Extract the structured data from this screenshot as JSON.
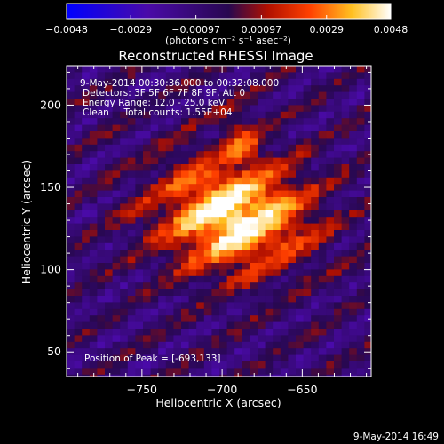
{
  "colorbar": {
    "ticks": [
      "-0.0048",
      "-0.0029",
      "-0.00097",
      "0.00097",
      "0.0029",
      "0.0048"
    ],
    "units": "(photons cm⁻² s⁻¹ asec⁻²)",
    "range": [
      -0.0048,
      0.0048
    ]
  },
  "chart_data": {
    "type": "heatmap",
    "title": "Reconstructed RHESSI Image",
    "xlabel": "Heliocentric X (arcsec)",
    "ylabel": "Heliocentric Y (arcsec)",
    "xlim": [
      -797,
      -607
    ],
    "ylim": [
      35,
      224
    ],
    "xticks": [
      -750,
      -700,
      -650
    ],
    "xtick_labels": [
      "−750",
      "−700",
      "−650"
    ],
    "yticks": [
      50,
      100,
      150,
      200
    ],
    "ytick_labels": [
      "50",
      "100",
      "150",
      "200"
    ],
    "peak": {
      "x": -693,
      "y": 133
    },
    "annotations": [
      "9-May-2014 00:30:36.000 to 00:32:08.000",
      "Detectors: 3F 5F 6F 7F 8F 9F, Att 0",
      "Energy Range: 12.0 - 25.0 keV",
      "Clean     Total counts: 1.55E+04"
    ],
    "peak_label": "Position of Peak = [-693,133]",
    "colormap": "blue-purple-red-yellow-white",
    "colors": {
      "background": "#000000",
      "text": "#ffffff"
    }
  },
  "footer": {
    "timestamp": "9-May-2014 16:49"
  }
}
